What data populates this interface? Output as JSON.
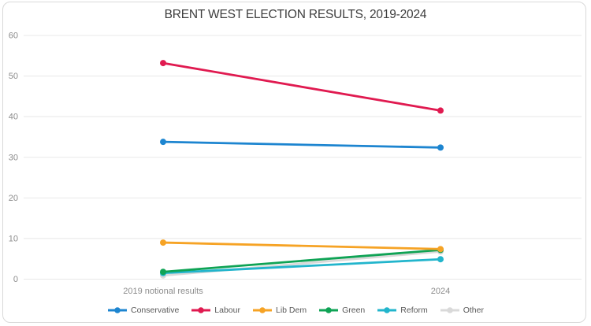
{
  "chart_data": {
    "type": "line",
    "title": "BRENT WEST ELECTION RESULTS, 2019-2024",
    "categories": [
      "2019 notional results",
      "2024"
    ],
    "series": [
      {
        "name": "Conservative",
        "color": "#1d85d0",
        "values": [
          33.8,
          32.4
        ]
      },
      {
        "name": "Labour",
        "color": "#e01a50",
        "values": [
          53.2,
          41.5
        ]
      },
      {
        "name": "Lib Dem",
        "color": "#f6a325",
        "values": [
          9.0,
          7.4
        ]
      },
      {
        "name": "Green",
        "color": "#0fa355",
        "values": [
          1.8,
          7.2
        ]
      },
      {
        "name": "Reform",
        "color": "#22b5cc",
        "values": [
          1.5,
          4.9
        ]
      },
      {
        "name": "Other",
        "color": "#d9d9d9",
        "values": [
          0.9,
          6.8
        ]
      }
    ],
    "y_ticks": [
      0,
      10,
      20,
      30,
      40,
      50,
      60
    ],
    "ylim": [
      0,
      60
    ],
    "grid": true,
    "legend_position": "bottom",
    "colors": {
      "gridline": "#e8e8e8",
      "frame_border": "#d9d9d9",
      "title_text": "#3d3d3d",
      "tick_text": "#8c8c8c",
      "legend_text": "#595959"
    }
  }
}
